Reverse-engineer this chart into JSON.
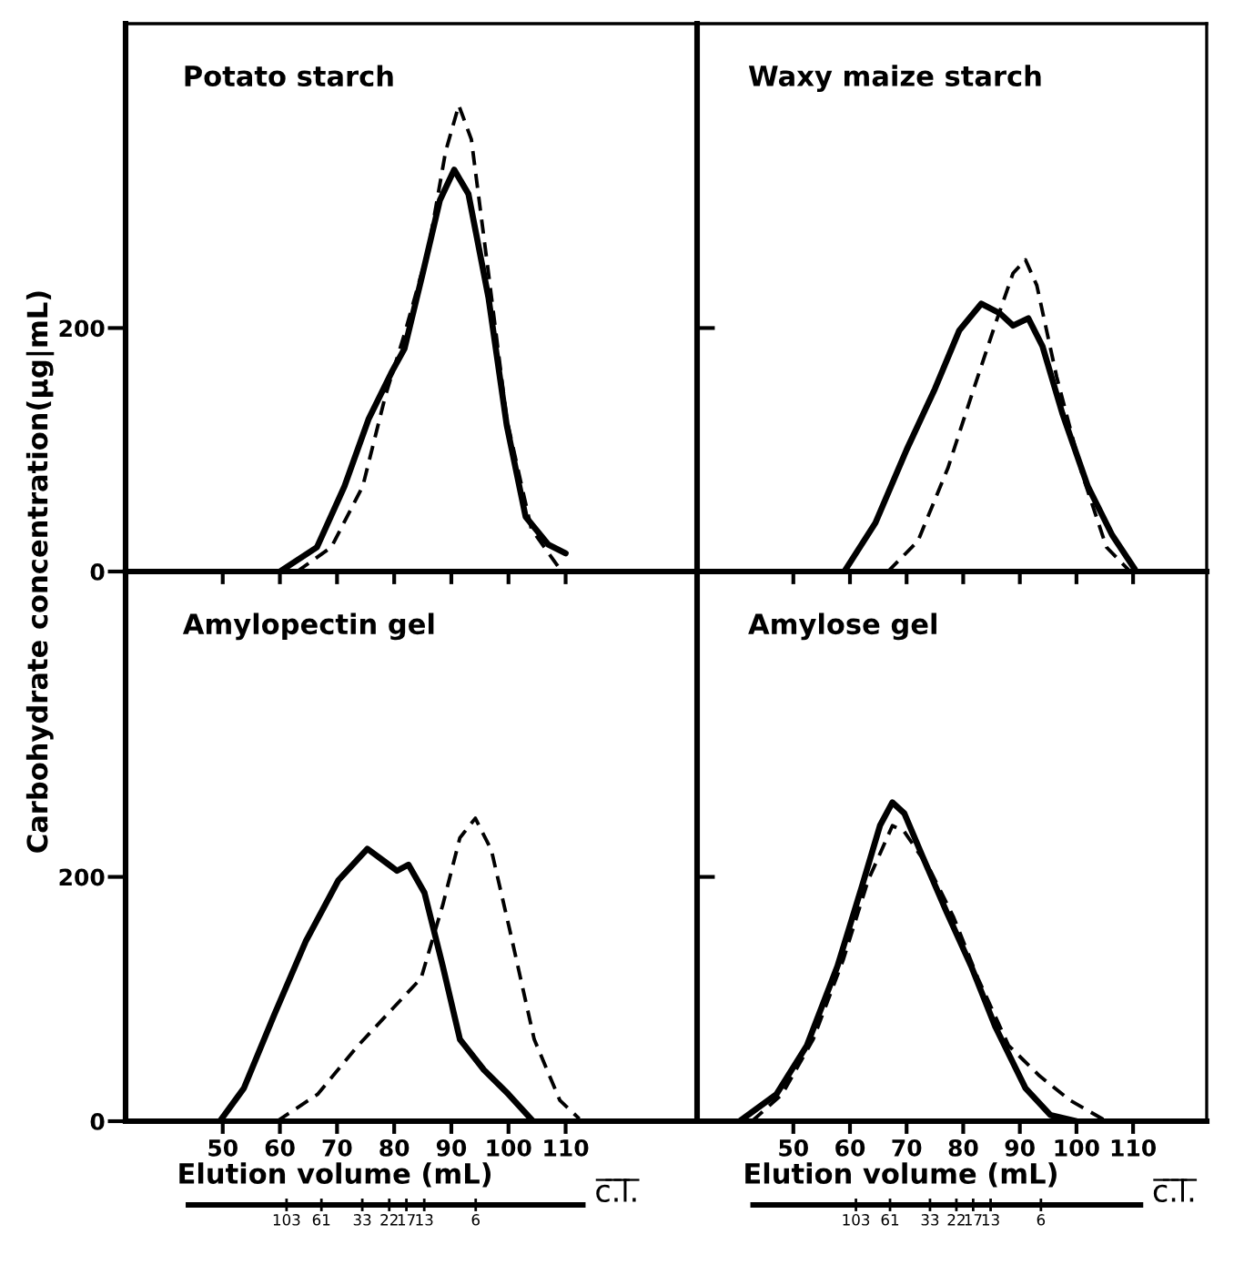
{
  "chart_data": [
    {
      "type": "line",
      "title": "Potato starch",
      "ylabel": "Carbohydrate concentration(µg|mL)",
      "xlim": [
        33,
        133
      ],
      "ylim": [
        0,
        450
      ],
      "xticks": [
        {
          "value": 50,
          "label": null
        },
        {
          "value": 60,
          "label": null
        },
        {
          "value": 70,
          "label": null
        },
        {
          "value": 80,
          "label": null
        },
        {
          "value": 90,
          "label": null
        },
        {
          "value": 100,
          "label": null
        },
        {
          "value": 110,
          "label": null
        }
      ],
      "yticks": [
        0,
        200
      ],
      "tick_labels": "y",
      "series": [
        {
          "color": "#000000",
          "line_style": "solid",
          "x": [
            60,
            66.5,
            71.3,
            75.5,
            79.7,
            81.8,
            85,
            88,
            90.5,
            93,
            96.5,
            99.7,
            103,
            107,
            110
          ],
          "values": [
            0,
            20,
            70,
            125,
            165,
            183,
            245,
            305,
            330,
            310,
            225,
            120,
            45,
            22,
            15
          ]
        },
        {
          "color": "#000000",
          "line_style": "dashed",
          "x": [
            63,
            69,
            74.5,
            78.5,
            81.8,
            86,
            89,
            91.3,
            93.5,
            96.5,
            99.7,
            104,
            109
          ],
          "values": [
            0,
            20,
            70,
            145,
            195,
            265,
            345,
            383,
            355,
            245,
            125,
            35,
            2
          ]
        }
      ]
    },
    {
      "type": "line",
      "title": "Waxy maize starch",
      "xlim": [
        33,
        123
      ],
      "ylim": [
        0,
        450
      ],
      "xticks": [
        {
          "value": 50,
          "label": null
        },
        {
          "value": 60,
          "label": null
        },
        {
          "value": 70,
          "label": null
        },
        {
          "value": 80,
          "label": null
        },
        {
          "value": 90,
          "label": null
        },
        {
          "value": 100,
          "label": null
        },
        {
          "value": 110,
          "label": null
        }
      ],
      "yticks": [
        {
          "value": 200,
          "label": null
        }
      ],
      "tick_labels": false,
      "series": [
        {
          "color": "#000000",
          "line_style": "solid",
          "x": [
            59,
            64.5,
            70,
            75,
            79.3,
            83.2,
            86.5,
            88.8,
            91.5,
            94,
            97.5,
            102,
            106.3,
            110.3
          ],
          "values": [
            0,
            40,
            100,
            150,
            198,
            220,
            212,
            202,
            208,
            185,
            130,
            70,
            30,
            2
          ]
        },
        {
          "color": "#000000",
          "line_style": "dashed",
          "x": [
            66.7,
            72,
            77.3,
            81.5,
            85.8,
            88.8,
            91,
            93,
            96.5,
            101,
            105.3,
            109.5
          ],
          "values": [
            0,
            25,
            85,
            145,
            205,
            245,
            256,
            235,
            160,
            80,
            20,
            0
          ]
        }
      ]
    },
    {
      "type": "line",
      "title": "Amylopectin gel",
      "xlabel": "Elution volume (mL)",
      "x2label": "c̅.̅l̅.̅",
      "xlim": [
        33,
        133
      ],
      "ylim": [
        0,
        450
      ],
      "xticks": [
        50,
        60,
        70,
        80,
        90,
        100,
        110
      ],
      "yticks": [
        0,
        200
      ],
      "x2lim": [
        450,
        1.2
      ],
      "log": "x2",
      "x2ticks": [
        103,
        61,
        33,
        22,
        17,
        13,
        6
      ],
      "series": [
        {
          "color": "#000000",
          "line_style": "solid",
          "x": [
            49.5,
            53.7,
            59,
            64.5,
            70.2,
            75.3,
            78.5,
            80.5,
            82.5,
            85.3,
            88.5,
            91.5,
            95.7,
            100,
            104.3
          ],
          "values": [
            0,
            27,
            87,
            147,
            197,
            223,
            212,
            205,
            210,
            187,
            127,
            67,
            42,
            22,
            0
          ]
        },
        {
          "color": "#000000",
          "line_style": "dashed",
          "x": [
            59.5,
            66.6,
            73.7,
            79.7,
            84.7,
            88.5,
            91.5,
            94.2,
            97,
            100.2,
            104.5,
            109,
            112.4
          ],
          "values": [
            0,
            22,
            62,
            92,
            117,
            177,
            232,
            248,
            222,
            157,
            67,
            17,
            2
          ]
        }
      ]
    },
    {
      "type": "line",
      "title": "Amylose gel",
      "xlabel": "Elution volume (mL)",
      "x2label": "c̅.̅l̅.̅",
      "xlim": [
        33,
        123
      ],
      "ylim": [
        0,
        450
      ],
      "xticks": [
        50,
        60,
        70,
        80,
        90,
        100,
        110
      ],
      "yticks": [
        {
          "value": 200,
          "label": null
        }
      ],
      "tick_labels": "x",
      "x2lim": [
        500,
        1.3
      ],
      "log": "x2",
      "x2ticks": [
        103,
        61,
        33,
        22,
        17,
        13,
        6
      ],
      "series": [
        {
          "color": "#000000",
          "line_style": "solid",
          "x": [
            40.5,
            47,
            52.4,
            57.8,
            62.1,
            65.3,
            67.5,
            69.6,
            72.8,
            77,
            81.4,
            85.7,
            91,
            95.4,
            100
          ],
          "values": [
            0,
            22,
            62,
            127,
            192,
            242,
            261,
            252,
            217,
            172,
            127,
            77,
            27,
            5,
            0
          ]
        },
        {
          "color": "#000000",
          "line_style": "dashed",
          "x": [
            42.7,
            48,
            53.5,
            58.8,
            63.2,
            67.5,
            69.6,
            74,
            78.3,
            82.6,
            88,
            93.5,
            98.9,
            105.3
          ],
          "values": [
            0,
            22,
            67,
            132,
            197,
            242,
            237,
            207,
            167,
            117,
            62,
            37,
            17,
            0
          ]
        }
      ]
    }
  ]
}
